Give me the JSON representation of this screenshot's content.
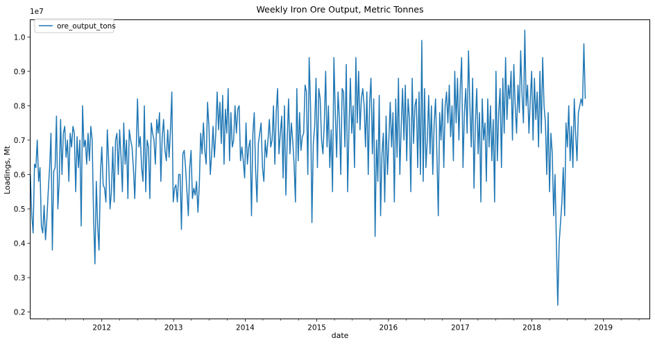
{
  "chart_data": {
    "type": "line",
    "title": "Weekly Iron Ore Output, Metric Tonnes",
    "xlabel": "date",
    "ylabel": "Loadings, Mt",
    "y_offset_label": "1e7",
    "legend": {
      "placement": "top-left",
      "entries": [
        "ore_output_tons"
      ]
    },
    "grid": false,
    "series_color": "#1f77b4",
    "xlim": [
      "2011-01-01",
      "2019-08-25"
    ],
    "ylim": [
      0.18,
      1.05
    ],
    "yticks": [
      0.2,
      0.3,
      0.4,
      0.5,
      0.6,
      0.7,
      0.8,
      0.9,
      1.0
    ],
    "ytick_labels": [
      "0.2",
      "0.3",
      "0.4",
      "0.5",
      "0.6",
      "0.7",
      "0.8",
      "0.9",
      "1.0"
    ],
    "xticks": [
      "2012-01-01",
      "2013-01-01",
      "2014-01-01",
      "2015-01-01",
      "2016-01-01",
      "2017-01-01",
      "2018-01-01",
      "2019-01-01"
    ],
    "xtick_labels": [
      "2012",
      "2013",
      "2014",
      "2015",
      "2016",
      "2017",
      "2018",
      "2019"
    ],
    "series": [
      {
        "name": "ore_output_tons",
        "start_date": "2011-01-02",
        "step_days": 7,
        "values": [
          0.6,
          0.48,
          0.43,
          0.63,
          0.62,
          0.7,
          0.58,
          0.62,
          0.45,
          0.43,
          0.51,
          0.41,
          0.47,
          0.55,
          0.62,
          0.72,
          0.38,
          0.61,
          0.62,
          0.77,
          0.5,
          0.58,
          0.76,
          0.6,
          0.72,
          0.74,
          0.65,
          0.7,
          0.58,
          0.72,
          0.68,
          0.74,
          0.72,
          0.55,
          0.71,
          0.62,
          0.7,
          0.45,
          0.8,
          0.68,
          0.7,
          0.63,
          0.72,
          0.64,
          0.74,
          0.7,
          0.48,
          0.34,
          0.58,
          0.45,
          0.38,
          0.6,
          0.68,
          0.57,
          0.56,
          0.52,
          0.73,
          0.64,
          0.5,
          0.55,
          0.68,
          0.52,
          0.7,
          0.72,
          0.6,
          0.73,
          0.65,
          0.55,
          0.75,
          0.63,
          0.7,
          0.53,
          0.73,
          0.7,
          0.68,
          0.62,
          0.53,
          0.66,
          0.82,
          0.68,
          0.71,
          0.62,
          0.58,
          0.8,
          0.55,
          0.7,
          0.68,
          0.53,
          0.75,
          0.72,
          0.7,
          0.63,
          0.76,
          0.72,
          0.78,
          0.58,
          0.71,
          0.76,
          0.67,
          0.64,
          0.73,
          0.65,
          0.73,
          0.84,
          0.52,
          0.56,
          0.57,
          0.52,
          0.6,
          0.6,
          0.44,
          0.66,
          0.67,
          0.62,
          0.55,
          0.48,
          0.62,
          0.67,
          0.53,
          0.56,
          0.54,
          0.58,
          0.49,
          0.57,
          0.72,
          0.66,
          0.75,
          0.67,
          0.63,
          0.81,
          0.74,
          0.6,
          0.66,
          0.74,
          0.65,
          0.72,
          0.84,
          0.73,
          0.81,
          0.69,
          0.83,
          0.63,
          0.79,
          0.72,
          0.85,
          0.64,
          0.78,
          0.68,
          0.7,
          0.8,
          0.72,
          0.79,
          0.8,
          0.64,
          0.68,
          0.64,
          0.59,
          0.75,
          0.63,
          0.68,
          0.7,
          0.48,
          0.72,
          0.78,
          0.61,
          0.52,
          0.69,
          0.72,
          0.75,
          0.62,
          0.58,
          0.7,
          0.65,
          0.7,
          0.76,
          0.68,
          0.7,
          0.8,
          0.63,
          0.78,
          0.85,
          0.66,
          0.72,
          0.77,
          0.59,
          0.8,
          0.54,
          0.7,
          0.82,
          0.66,
          0.75,
          0.7,
          0.63,
          0.52,
          0.85,
          0.64,
          0.78,
          0.67,
          0.71,
          0.72,
          0.86,
          0.84,
          0.6,
          0.94,
          0.8,
          0.46,
          0.69,
          0.74,
          0.88,
          0.62,
          0.85,
          0.82,
          0.7,
          0.66,
          0.75,
          0.9,
          0.68,
          0.8,
          0.62,
          0.73,
          0.55,
          0.94,
          0.78,
          0.65,
          0.84,
          0.76,
          0.6,
          0.85,
          0.84,
          0.68,
          0.92,
          0.55,
          0.74,
          0.88,
          0.72,
          0.8,
          0.62,
          0.94,
          0.75,
          0.9,
          0.73,
          0.82,
          0.85,
          0.8,
          0.68,
          0.84,
          0.6,
          0.81,
          0.88,
          0.66,
          0.82,
          0.42,
          0.7,
          0.58,
          0.83,
          0.48,
          0.66,
          0.72,
          0.52,
          0.77,
          0.6,
          0.7,
          0.81,
          0.68,
          0.78,
          0.52,
          0.82,
          0.65,
          0.88,
          0.6,
          0.74,
          0.85,
          0.7,
          0.86,
          0.64,
          0.82,
          0.76,
          0.55,
          0.88,
          0.69,
          0.8,
          0.82,
          0.62,
          0.84,
          0.6,
          0.99,
          0.58,
          0.85,
          0.62,
          0.7,
          0.83,
          0.66,
          0.8,
          0.6,
          0.75,
          0.82,
          0.66,
          0.48,
          0.78,
          0.7,
          0.82,
          0.62,
          0.8,
          0.84,
          0.75,
          0.86,
          0.71,
          0.8,
          0.64,
          0.9,
          0.75,
          0.88,
          0.7,
          0.85,
          0.94,
          0.62,
          0.78,
          0.85,
          0.72,
          0.96,
          0.8,
          0.68,
          0.88,
          0.56,
          0.75,
          0.85,
          0.66,
          0.78,
          0.52,
          0.82,
          0.7,
          0.75,
          0.58,
          0.82,
          0.68,
          0.8,
          0.64,
          0.76,
          0.52,
          0.9,
          0.64,
          0.78,
          0.85,
          0.62,
          0.88,
          0.72,
          0.94,
          0.76,
          0.86,
          0.82,
          0.9,
          0.7,
          0.92,
          0.8,
          0.72,
          0.86,
          0.78,
          0.96,
          0.83,
          0.75,
          1.02,
          0.8,
          0.86,
          0.72,
          0.82,
          0.9,
          0.7,
          0.88,
          0.76,
          0.84,
          0.68,
          0.9,
          0.72,
          0.94,
          0.8,
          0.75,
          0.6,
          0.78,
          0.55,
          0.72,
          0.66,
          0.48,
          0.6,
          0.4,
          0.22,
          0.4,
          0.46,
          0.52,
          0.62,
          0.48,
          0.75,
          0.68,
          0.8,
          0.64,
          0.74,
          0.62,
          0.82,
          0.72,
          0.64,
          0.78,
          0.8,
          0.82,
          0.8,
          0.98,
          0.82
        ]
      }
    ]
  }
}
